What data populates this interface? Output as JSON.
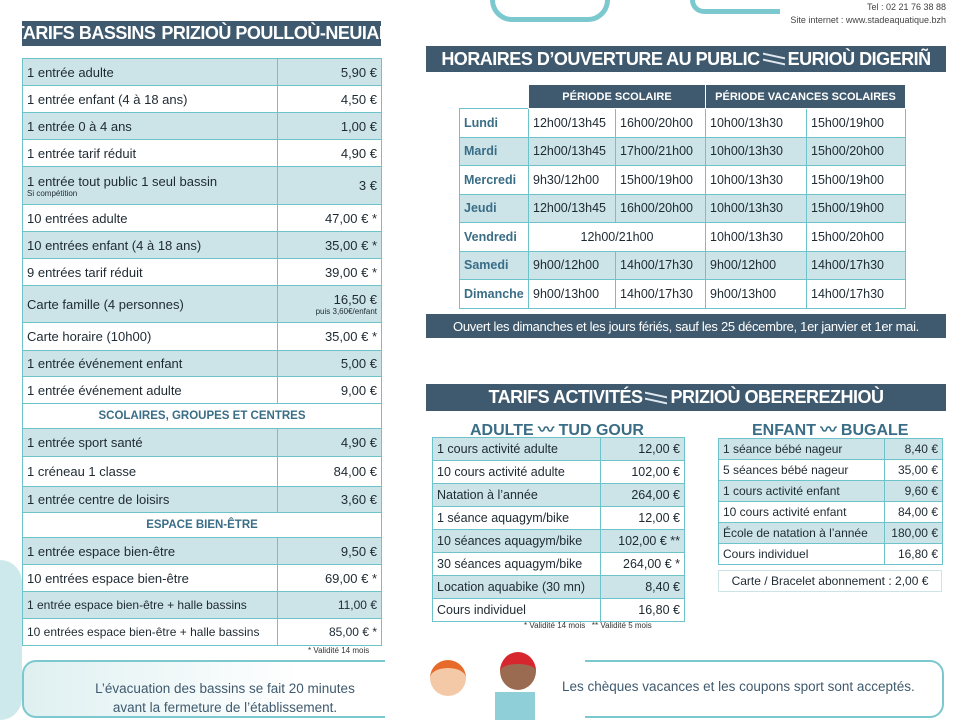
{
  "contact": {
    "tel": "Tel : 02 21 76 38 88",
    "site": "Site internet : www.stadeaquatique.bzh"
  },
  "bassins": {
    "title": "TARIFS BASSINS",
    "title_br": "PRIZIOÙ POULLOÙ-NEUIAL",
    "rows": [
      {
        "label": "1 entrée adulte",
        "price": "5,90 €"
      },
      {
        "label": "1 entrée enfant (4 à 18 ans)",
        "price": "4,50 €"
      },
      {
        "label": "1 entrée 0 à 4 ans",
        "price": "1,00 €"
      },
      {
        "label": "1 entrée tarif réduit",
        "price": "4,90 €"
      },
      {
        "label": "1 entrée tout public 1 seul bassin",
        "note": "Si compétition",
        "price": "3 €"
      },
      {
        "label": "10 entrées adulte",
        "price": "47,00 € *"
      },
      {
        "label": "10 entrées enfant (4 à 18 ans)",
        "price": "35,00 € *"
      },
      {
        "label": "9 entrées tarif réduit",
        "price": "39,00 € *"
      },
      {
        "label": "Carte famille (4 personnes)",
        "price": "16,50 €",
        "price_note": "puis  3,60€/enfant"
      },
      {
        "label": "Carte horaire (10h00)",
        "price": "35,00 € *"
      },
      {
        "label": "1 entrée événement enfant",
        "price": "5,00 €"
      },
      {
        "label": "1 entrée événement adulte",
        "price": "9,00 €"
      }
    ],
    "section_groups": "SCOLAIRES, GROUPES ET CENTRES",
    "groups": [
      {
        "label": "1 entrée sport santé",
        "price": "4,90 €"
      },
      {
        "label": "1 créneau 1 classe",
        "price": "84,00 €"
      },
      {
        "label": "1 entrée centre de loisirs",
        "price": "3,60 €"
      }
    ],
    "section_wellness": "ESPACE BIEN-ÊTRE",
    "wellness": [
      {
        "label": "1 entrée espace bien-être",
        "price": "9,50 €"
      },
      {
        "label": "10 entrées espace bien-être",
        "price": "69,00 € *"
      },
      {
        "label": "1 entrée espace bien-être + halle bassins",
        "price": "11,00 €"
      },
      {
        "label": "10 entrées espace bien-être + halle bassins",
        "price": "85,00 € *"
      }
    ],
    "footnote": "* Validité 14 mois"
  },
  "horaires": {
    "title": "HORAIRES D’OUVERTURE AU PUBLIC",
    "title_br": "EURIOÙ DIGERIÑ",
    "head": [
      "PÉRIODE SCOLAIRE",
      "PÉRIODE VACANCES SCOLAIRES"
    ],
    "rows": [
      {
        "day": "Lundi",
        "s1": "12h00/13h45",
        "s2": "16h00/20h00",
        "v1": "10h00/13h30",
        "v2": "15h00/19h00"
      },
      {
        "day": "Mardi",
        "s1": "12h00/13h45",
        "s2": "17h00/21h00",
        "v1": "10h00/13h30",
        "v2": "15h00/20h00"
      },
      {
        "day": "Mercredi",
        "s1": "9h30/12h00",
        "s2": "15h00/19h00",
        "v1": "10h00/13h30",
        "v2": "15h00/19h00"
      },
      {
        "day": "Jeudi",
        "s1": "12h00/13h45",
        "s2": "16h00/20h00",
        "v1": "10h00/13h30",
        "v2": "15h00/19h00"
      },
      {
        "day": "Vendredi",
        "s1": "12h00/21h00",
        "v1": "10h00/13h30",
        "v2": "15h00/20h00"
      },
      {
        "day": "Samedi",
        "s1": "9h00/12h00",
        "s2": "14h00/17h30",
        "v1": "9h00/12h00",
        "v2": "14h00/17h30"
      },
      {
        "day": "Dimanche",
        "s1": "9h00/13h00",
        "s2": "14h00/17h30",
        "v1": "9h00/13h00",
        "v2": "14h00/17h30"
      }
    ],
    "banner": "Ouvert les dimanches et les jours fériés, sauf les 25 décembre, 1er janvier et 1er mai."
  },
  "activites": {
    "title": "TARIFS ACTIVITÉS",
    "title_br": "PRIZIOÙ OBEREREZHIOÙ",
    "adult_title": "ADULTE",
    "adult_title_br": "TUD GOUR",
    "adult": [
      {
        "label": "1 cours activité adulte",
        "price": "12,00 €"
      },
      {
        "label": "10 cours activité adulte",
        "price": "102,00 €"
      },
      {
        "label": "Natation à l’année",
        "price": "264,00 €"
      },
      {
        "label": "1 séance aquagym/bike",
        "price": "12,00 €"
      },
      {
        "label": "10 séances aquagym/bike",
        "price": "102,00 € **"
      },
      {
        "label": "30 séances aquagym/bike",
        "price": "264,00 € *"
      },
      {
        "label": "Location aquabike (30 mn)",
        "price": "8,40 €"
      },
      {
        "label": "Cours individuel",
        "price": "16,80 €"
      }
    ],
    "adult_note": "* Validité 14 mois   ** Validité 5 mois",
    "child_title": "ENFANT",
    "child_title_br": "BUGALE",
    "child": [
      {
        "label": "1 séance bébé nageur",
        "price": "8,40 €"
      },
      {
        "label": "5 séances bébé nageur",
        "price": "35,00 €"
      },
      {
        "label": "1 cours activité enfant",
        "price": "9,60 €"
      },
      {
        "label": "10 cours activité enfant",
        "price": "84,00 €"
      },
      {
        "label": "École de natation à l’année",
        "price": "180,00 €"
      },
      {
        "label": "Cours individuel",
        "price": "16,80 €"
      }
    ],
    "card": "Carte / Bracelet abonnement : 2,00 €"
  },
  "bottom": {
    "left_line1": "L’évacuation des bassins se fait 20 minutes",
    "left_line2": "avant la fermeture de l’établissement.",
    "right": "Les chèques vacances et les coupons sport sont acceptés."
  },
  "colors": {
    "bar": "#3f5a6e",
    "shade": "#cce3e8",
    "border": "#6cc3c9",
    "accent": "#3a6d86"
  }
}
